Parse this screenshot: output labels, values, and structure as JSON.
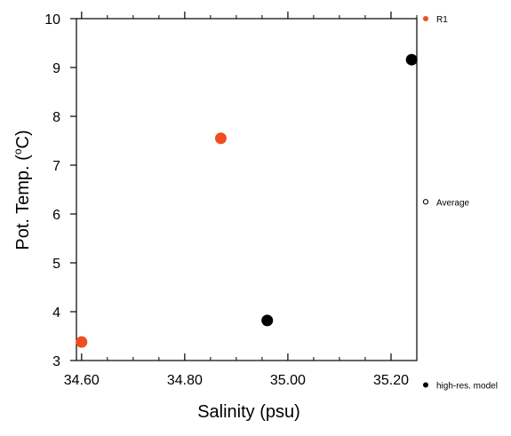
{
  "chart_data": {
    "type": "scatter",
    "title": "",
    "xlabel": "Salinity (psu)",
    "ylabel_main": "Pot. Temp. (",
    "ylabel_sup": "o",
    "ylabel_tail": "C)",
    "xlim": [
      34.59,
      35.25
    ],
    "ylim": [
      3,
      10
    ],
    "xticks": [
      34.6,
      34.8,
      35.0,
      35.2
    ],
    "xtick_labels": [
      "34.60",
      "34.80",
      "35.00",
      "35.20"
    ],
    "yticks": [
      3,
      4,
      5,
      6,
      7,
      8,
      9,
      10
    ],
    "ytick_labels": [
      "3",
      "4",
      "5",
      "6",
      "7",
      "8",
      "9",
      "10"
    ],
    "grid": false,
    "legend_position": "right",
    "series": [
      {
        "name": "R1",
        "color": "#f04e1f",
        "points": [
          {
            "x": 34.6,
            "y": 3.38
          },
          {
            "x": 34.87,
            "y": 7.55
          }
        ]
      },
      {
        "name": "high-res. model",
        "color": "#000000",
        "points": [
          {
            "x": 34.96,
            "y": 3.82
          },
          {
            "x": 35.24,
            "y": 9.16
          }
        ]
      }
    ],
    "legend": [
      {
        "label": "R1",
        "marker": "filled",
        "color": "#f04e1f"
      },
      {
        "label": "Average",
        "marker": "hollow",
        "color": "#000000"
      },
      {
        "label": "high-res. model",
        "marker": "filled",
        "color": "#000000"
      }
    ]
  }
}
